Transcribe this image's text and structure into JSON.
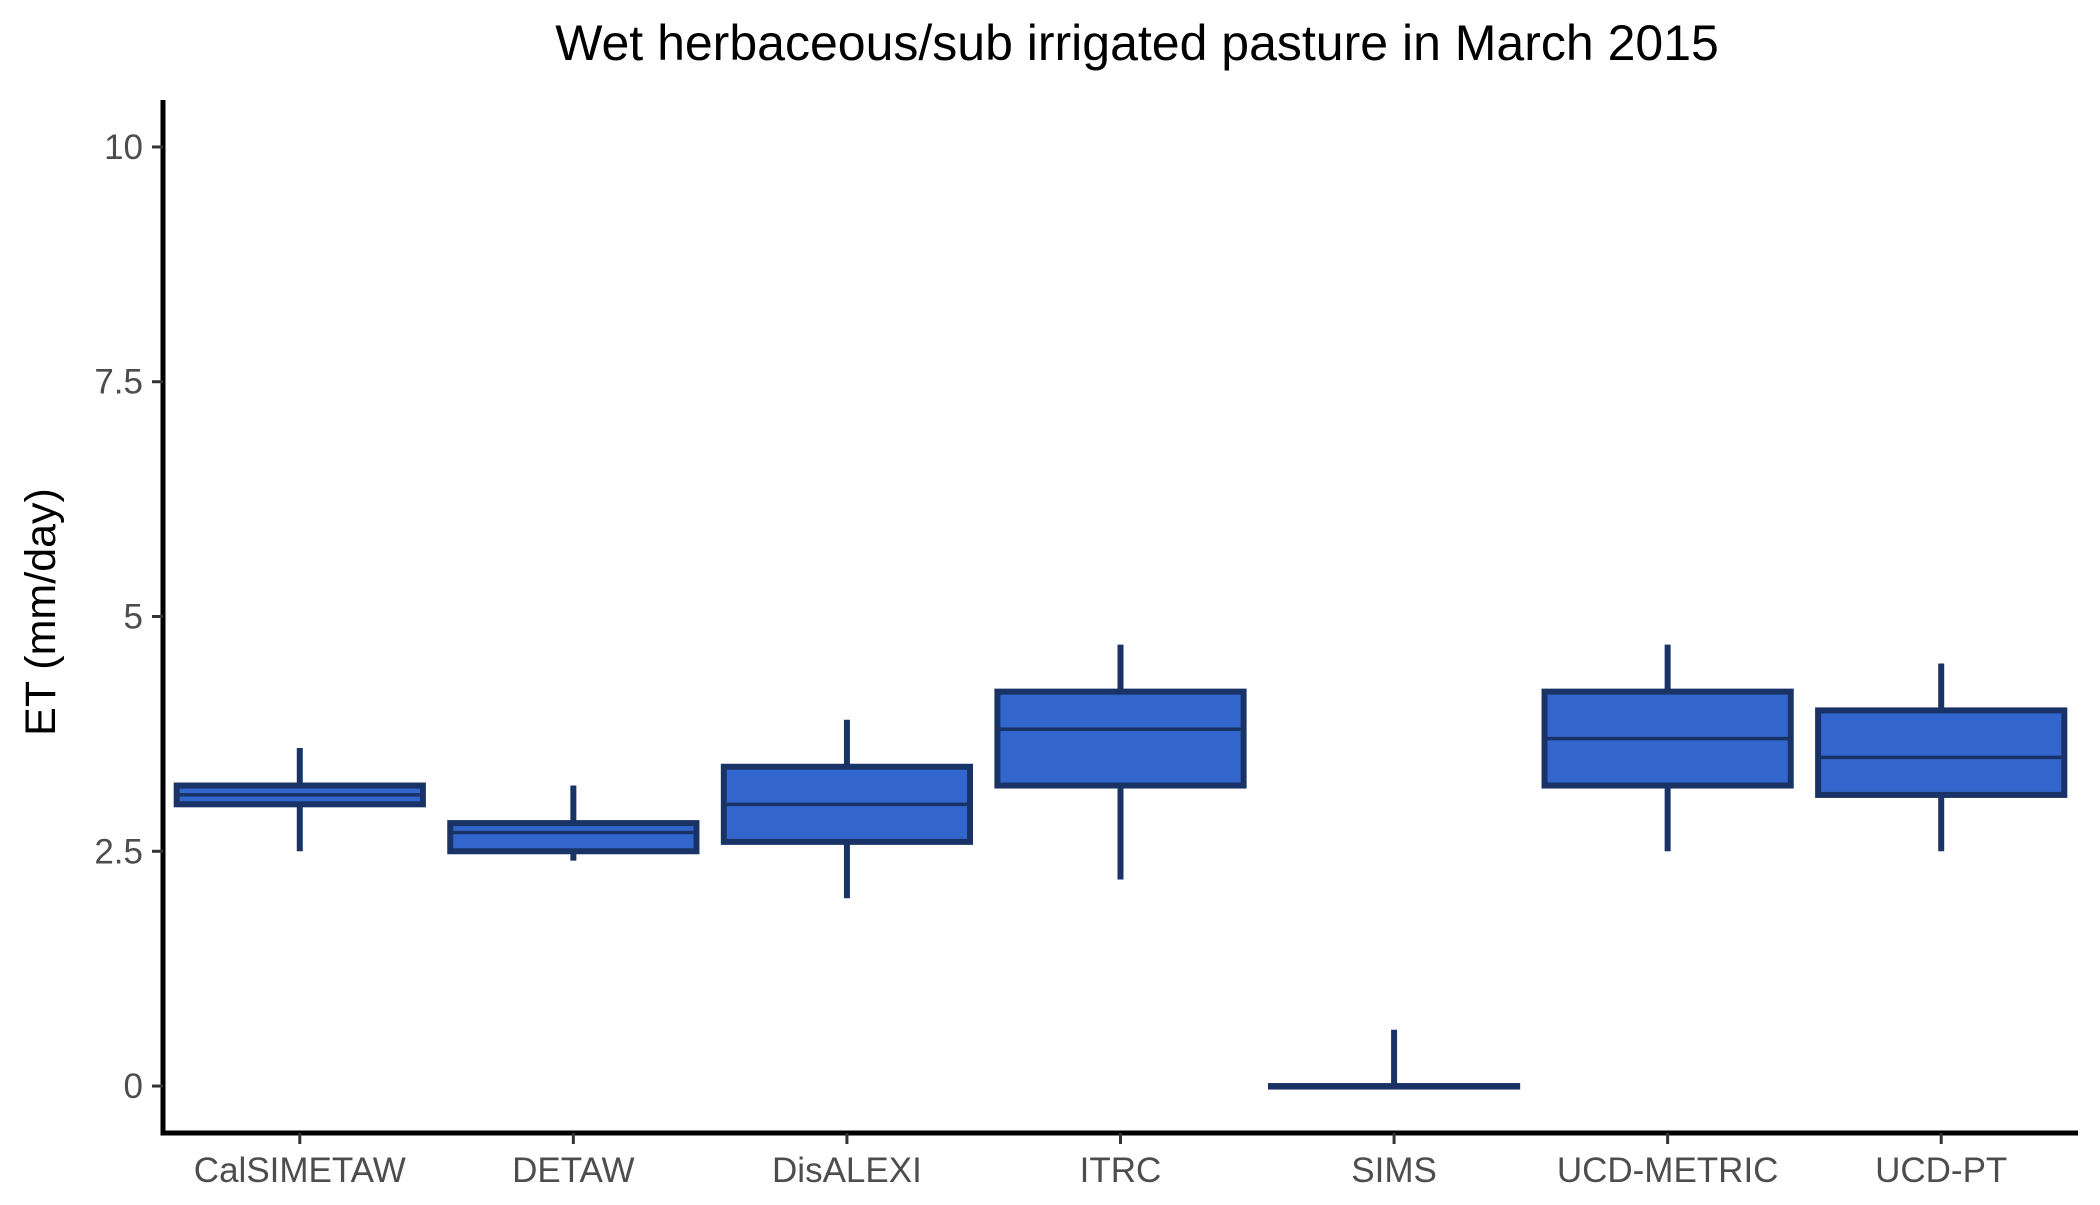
{
  "chart_data": {
    "type": "box",
    "title": "Wet herbaceous/sub irrigated pasture in March 2015",
    "xlabel": "",
    "ylabel": "ET (mm/day)",
    "ylim": [
      -0.5,
      10.5
    ],
    "yticks": [
      {
        "value": 0,
        "label": "0"
      },
      {
        "value": 2.5,
        "label": "2.5"
      },
      {
        "value": 5,
        "label": "5"
      },
      {
        "value": 7.5,
        "label": "7.5"
      },
      {
        "value": 10,
        "label": "10"
      }
    ],
    "grid": false,
    "legend": "none",
    "fill_color": "#3366cc",
    "stroke_color": "#1a3366",
    "categories": [
      "CalSIMETAW",
      "DETAW",
      "DisALEXI",
      "ITRC",
      "SIMS",
      "UCD-METRIC",
      "UCD-PT"
    ],
    "boxes": [
      {
        "category": "CalSIMETAW",
        "min": 2.5,
        "q1": 3.0,
        "median": 3.1,
        "q3": 3.2,
        "max": 3.6
      },
      {
        "category": "DETAW",
        "min": 2.4,
        "q1": 2.5,
        "median": 2.7,
        "q3": 2.8,
        "max": 3.2
      },
      {
        "category": "DisALEXI",
        "min": 2.0,
        "q1": 2.6,
        "median": 3.0,
        "q3": 3.4,
        "max": 3.9
      },
      {
        "category": "ITRC",
        "min": 2.2,
        "q1": 3.2,
        "median": 3.8,
        "q3": 4.2,
        "max": 4.7
      },
      {
        "category": "SIMS",
        "min": 0.0,
        "q1": 0.0,
        "median": 0.0,
        "q3": 0.0,
        "max": 0.6
      },
      {
        "category": "UCD-METRIC",
        "min": 2.5,
        "q1": 3.2,
        "median": 3.7,
        "q3": 4.2,
        "max": 4.7
      },
      {
        "category": "UCD-PT",
        "min": 2.5,
        "q1": 3.1,
        "median": 3.5,
        "q3": 4.0,
        "max": 4.5
      }
    ]
  }
}
